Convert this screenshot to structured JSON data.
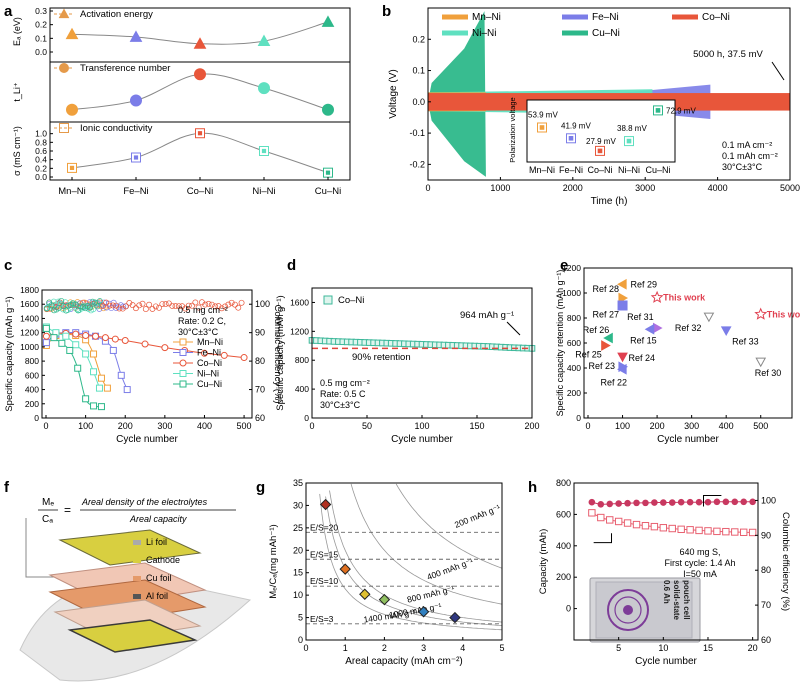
{
  "colors": {
    "MnNi": "#f0a03c",
    "FeNi": "#7b7de8",
    "CoNi": "#e8563a",
    "NiNi": "#5fe0c0",
    "CuNi": "#2db88a",
    "refRed": "#e04050",
    "coNiGreen": "#3cb89a"
  },
  "chart_data": [
    {
      "panel": "a",
      "type": "line",
      "categories": [
        "Mn–Ni",
        "Fe–Ni",
        "Co–Ni",
        "Ni–Ni",
        "Cu–Ni"
      ],
      "subplots": [
        {
          "name": "Activation energy",
          "ylabel": "Eₐ (eV)",
          "ylim": [
            0,
            0.3
          ],
          "yticks": [
            "0.0",
            "0.1",
            "0.2",
            "0.3"
          ],
          "values": [
            0.13,
            0.11,
            0.06,
            0.08,
            0.22
          ],
          "marker": "triangle"
        },
        {
          "name": "Transference number",
          "ylabel": "t_Li⁺",
          "ylim": [
            0.15,
            0.85
          ],
          "yticks": [],
          "values": [
            0.27,
            0.39,
            0.73,
            0.55,
            0.27
          ],
          "marker": "circle"
        },
        {
          "name": "Ionic conductivity",
          "ylabel": "σ (mS cm⁻¹)",
          "ylim": [
            0,
            1.2
          ],
          "yticks": [
            "0.0",
            "0.2",
            "0.4",
            "0.6",
            "0.8",
            "1.0"
          ],
          "values": [
            0.21,
            0.45,
            1.01,
            0.6,
            0.1
          ],
          "marker": "square"
        }
      ]
    },
    {
      "panel": "b",
      "type": "line",
      "xlabel": "Time (h)",
      "ylabel": "Voltage (V)",
      "xlim": [
        0,
        5000
      ],
      "ylim": [
        -0.25,
        0.3
      ],
      "xticks": [
        0,
        1000,
        2000,
        3000,
        4000,
        5000
      ],
      "yticks": [
        "-0.2",
        "-0.1",
        "0.0",
        "0.1",
        "0.2"
      ],
      "series": [
        {
          "name": "Mn–Ni",
          "end_time": 800,
          "amplitude": 0.03
        },
        {
          "name": "Fe–Ni",
          "end_time": 3900,
          "amplitude": 0.05
        },
        {
          "name": "Co–Ni",
          "end_time": 5000,
          "amplitude": 0.03
        },
        {
          "name": "Ni–Ni",
          "end_time": 3100,
          "amplitude": 0.04
        },
        {
          "name": "Cu–Ni",
          "end_time": 800,
          "amplitude": 0.22
        }
      ],
      "annotation": "5000 h, 37.5 mV",
      "conditions": [
        "0.1 mA cm⁻²",
        "0.1 mAh cm⁻²",
        "30°C±3°C"
      ],
      "inset": {
        "ylabel": "Polarization voltage",
        "categories": [
          "Mn–Ni",
          "Fe–Ni",
          "Co–Ni",
          "Ni–Ni",
          "Cu–Ni"
        ],
        "values": [
          53.9,
          41.9,
          27.9,
          38.8,
          72.9
        ],
        "labels": [
          "53.9 mV",
          "41.9 mV",
          "27.9 mV",
          "38.8 mV",
          "72.9 mV"
        ]
      }
    },
    {
      "panel": "c",
      "type": "scatter",
      "xlabel": "Cycle number",
      "ylabel": "Specific capacity (mAh g⁻¹)",
      "ylabel2": "Columbic efficiency (%)",
      "xlim": [
        0,
        520
      ],
      "ylim": [
        0,
        1800
      ],
      "ylim2": [
        60,
        105
      ],
      "xticks": [
        0,
        100,
        200,
        300,
        400,
        500
      ],
      "yticks": [
        0,
        200,
        400,
        600,
        800,
        1000,
        1200,
        1400,
        1600,
        1800
      ],
      "yticks2": [
        60,
        70,
        80,
        90,
        100
      ],
      "conditions": [
        "0.5 mg cm⁻²",
        "Rate: 0.2 C,",
        "30°C±3°C"
      ],
      "series": [
        {
          "name": "Mn–Ni",
          "x": [
            1,
            25,
            50,
            75,
            100,
            120,
            140,
            155
          ],
          "y": [
            1020,
            1160,
            1180,
            1160,
            1100,
            900,
            560,
            420
          ]
        },
        {
          "name": "Fe–Ni",
          "x": [
            1,
            25,
            50,
            75,
            100,
            125,
            150,
            170,
            190,
            205
          ],
          "y": [
            1060,
            1180,
            1200,
            1200,
            1180,
            1150,
            1080,
            950,
            600,
            400
          ]
        },
        {
          "name": "Co–Ni",
          "x": [
            1,
            25,
            50,
            75,
            100,
            125,
            150,
            175,
            200,
            250,
            300,
            350,
            400,
            450,
            500
          ],
          "y": [
            1150,
            1190,
            1190,
            1180,
            1160,
            1150,
            1130,
            1110,
            1090,
            1040,
            990,
            950,
            910,
            880,
            850
          ]
        },
        {
          "name": "Ni–Ni",
          "x": [
            1,
            25,
            50,
            75,
            100,
            120,
            135
          ],
          "y": [
            1280,
            1200,
            1150,
            1030,
            900,
            650,
            420
          ]
        },
        {
          "name": "Cu–Ni",
          "x": [
            1,
            20,
            40,
            60,
            80,
            100,
            120,
            140
          ],
          "y": [
            1260,
            1130,
            1050,
            950,
            700,
            270,
            170,
            160
          ]
        }
      ]
    },
    {
      "panel": "d",
      "type": "scatter",
      "xlabel": "Cycle number",
      "ylabel": "Specific capacity (mAh g⁻¹)",
      "xlim": [
        0,
        200
      ],
      "ylim": [
        0,
        1800
      ],
      "xticks": [
        0,
        50,
        100,
        150,
        200
      ],
      "yticks": [
        0,
        400,
        800,
        1200,
        1600
      ],
      "legend": "Co–Ni",
      "annotation": "964 mAh g⁻¹",
      "retention_text": "90% retention",
      "retention_value": 964,
      "conditions": [
        "0.5 mg cm⁻²",
        "Rate: 0.5 C",
        "30°C±3°C"
      ],
      "series": [
        {
          "name": "Co–Ni",
          "x": [
            1,
            20,
            40,
            60,
            80,
            100,
            120,
            140,
            160,
            180,
            200
          ],
          "y": [
            1075,
            1060,
            1050,
            1040,
            1030,
            1020,
            1010,
            1000,
            990,
            975,
            964
          ]
        }
      ]
    },
    {
      "panel": "e",
      "type": "scatter",
      "xlabel": "Cycle number",
      "ylabel": "Specific capacity retention (mAh g⁻¹)",
      "xlim": [
        0,
        550
      ],
      "ylim": [
        0,
        1200
      ],
      "xticks": [
        0,
        100,
        200,
        300,
        400,
        500
      ],
      "yticks": [
        0,
        200,
        400,
        600,
        800,
        1000,
        1200
      ],
      "points": [
        {
          "label": "Ref 29",
          "x": 100,
          "y": 1070,
          "marker": "tri-left",
          "color": "#f0a03c"
        },
        {
          "label": "Ref 28",
          "x": 100,
          "y": 960,
          "marker": "tri-right",
          "color": "#f0a03c"
        },
        {
          "label": "Ref 27",
          "x": 100,
          "y": 900,
          "marker": "square",
          "color": "#7b7de8"
        },
        {
          "label": "This work",
          "x": 200,
          "y": 964,
          "marker": "star",
          "color": "#e04050"
        },
        {
          "label": "Ref 31",
          "x": 200,
          "y": 720,
          "marker": "tri-right",
          "color": "#b070e0"
        },
        {
          "label": "Ref 15",
          "x": 180,
          "y": 710,
          "marker": "tri-left",
          "color": "#7b7de8"
        },
        {
          "label": "Ref 26",
          "x": 60,
          "y": 640,
          "marker": "tri-left",
          "color": "#2db88a"
        },
        {
          "label": "Ref 25",
          "x": 50,
          "y": 580,
          "marker": "tri-right",
          "color": "#e8563a"
        },
        {
          "label": "Ref 24",
          "x": 100,
          "y": 490,
          "marker": "tri-down",
          "color": "#e04050"
        },
        {
          "label": "Ref 23",
          "x": 100,
          "y": 410,
          "marker": "tri-right",
          "color": "#7b7de8"
        },
        {
          "label": "Ref 22",
          "x": 100,
          "y": 390,
          "marker": "tri-left",
          "color": "#7b7de8"
        },
        {
          "label": "Ref 32",
          "x": 350,
          "y": 810,
          "marker": "tri-down",
          "color": "#888888"
        },
        {
          "label": "Ref 33",
          "x": 400,
          "y": 700,
          "marker": "tri-down",
          "color": "#7b7de8"
        },
        {
          "label": "This work",
          "x": 500,
          "y": 830,
          "marker": "star",
          "color": "#e04050"
        },
        {
          "label": "Ref 30",
          "x": 500,
          "y": 450,
          "marker": "tri-down",
          "color": "#888888"
        }
      ]
    },
    {
      "panel": "g",
      "type": "scatter",
      "xlabel": "Areal capacity (mAh cm⁻²)",
      "ylabel": "Mₑ/Cₐ(mg mAh⁻¹)",
      "xlim": [
        0,
        5
      ],
      "ylim": [
        0,
        35
      ],
      "xticks": [
        0,
        1,
        2,
        3,
        4,
        5
      ],
      "yticks": [
        0,
        5,
        10,
        15,
        20,
        25,
        30,
        35
      ],
      "es_lines": [
        {
          "label": "E/S=20",
          "y": 24
        },
        {
          "label": "E/S=15",
          "y": 18
        },
        {
          "label": "E/S=10",
          "y": 12
        },
        {
          "label": "E/S=3",
          "y": 3.6
        }
      ],
      "contours": [
        {
          "label": "200 mAh g⁻¹",
          "k": 80
        },
        {
          "label": "400 mAh g⁻¹",
          "k": 40
        },
        {
          "label": "800 mAh g⁻¹",
          "k": 20
        },
        {
          "label": "1000 mAh g⁻¹",
          "k": 16
        },
        {
          "label": "1400 mAh g⁻¹",
          "k": 11.4
        }
      ],
      "points": [
        {
          "x": 0.5,
          "y": 30.2,
          "color": "#b03020"
        },
        {
          "x": 1.0,
          "y": 15.8,
          "color": "#e07020"
        },
        {
          "x": 1.5,
          "y": 10.2,
          "color": "#e0c030"
        },
        {
          "x": 2.0,
          "y": 9.0,
          "color": "#90c060"
        },
        {
          "x": 3.0,
          "y": 6.3,
          "color": "#3080c0"
        },
        {
          "x": 3.8,
          "y": 5.0,
          "color": "#303880"
        }
      ]
    },
    {
      "panel": "h",
      "type": "scatter",
      "xlabel": "Cycle number",
      "ylabel": "Capacity (mAh)",
      "ylabel2": "Columbic efficiency (%)",
      "xlim": [
        0,
        20
      ],
      "ylim": [
        -200,
        800
      ],
      "ylim2": [
        60,
        105
      ],
      "xticks": [
        5,
        10,
        15,
        20
      ],
      "yticks": [
        0,
        200,
        400,
        600,
        800
      ],
      "yticks2": [
        60,
        70,
        80,
        90,
        100
      ],
      "conditions": [
        "640 mg S,",
        "First cycle: 1.4 Ah",
        "I=50 mA"
      ],
      "cell_label": [
        "0.6 Ah",
        "solid-state",
        "pouch cell"
      ],
      "capacity": {
        "x": [
          2,
          3,
          4,
          5,
          6,
          7,
          8,
          9,
          10,
          11,
          12,
          13,
          14,
          15,
          16,
          17,
          18,
          19,
          20
        ],
        "y": [
          610,
          580,
          565,
          555,
          545,
          535,
          528,
          522,
          515,
          510,
          505,
          502,
          498,
          495,
          492,
          490,
          488,
          486,
          485
        ]
      },
      "efficiency": {
        "x": [
          2,
          3,
          4,
          5,
          6,
          7,
          8,
          9,
          10,
          11,
          12,
          13,
          14,
          15,
          16,
          17,
          18,
          19,
          20
        ],
        "y": [
          99.5,
          98.9,
          99.0,
          99.1,
          99.2,
          99.3,
          99.3,
          99.4,
          99.4,
          99.4,
          99.5,
          99.5,
          99.5,
          99.5,
          99.6,
          99.6,
          99.6,
          99.6,
          99.6
        ]
      }
    }
  ],
  "panel_f": {
    "numerator_symbol": "Mₑ",
    "denominator_symbol": "Cₐ",
    "equals": "=",
    "numerator": "Areal density of the electrolytes",
    "denominator": "Areal capacity",
    "legend": [
      "Li foil",
      "Cathode",
      "Cu foil",
      "Al foil"
    ]
  },
  "panel_labels": [
    "a",
    "b",
    "c",
    "d",
    "e",
    "f",
    "g",
    "h"
  ]
}
